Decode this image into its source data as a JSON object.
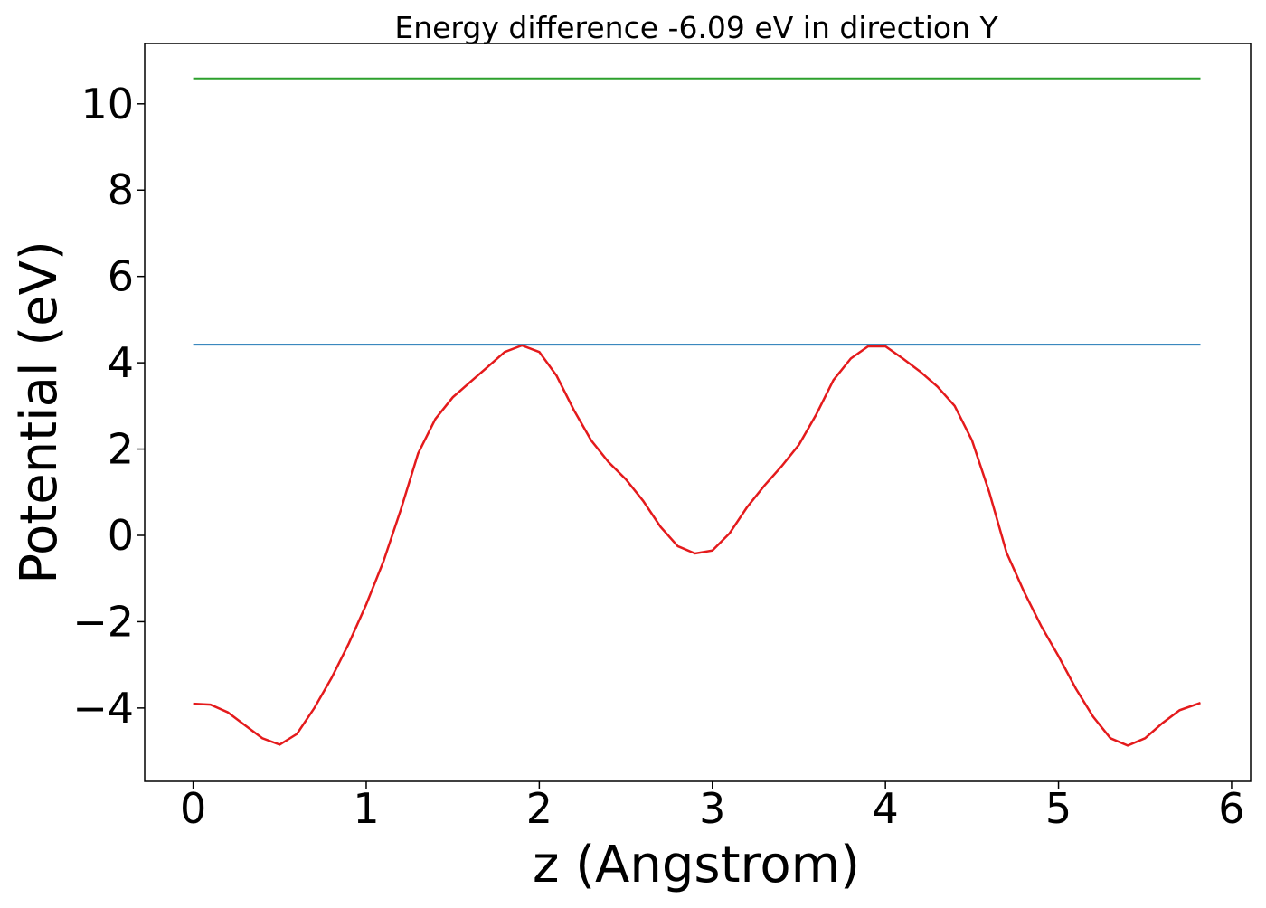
{
  "chart_data": {
    "type": "line",
    "title": "Energy difference -6.09 eV in direction Y",
    "xlabel": "z (Angstrom)",
    "ylabel": "Potential (eV)",
    "xlim": [
      -0.28,
      6.11
    ],
    "ylim": [
      -5.7,
      11.4
    ],
    "xticks": [
      0,
      1,
      2,
      3,
      4,
      5,
      6
    ],
    "yticks": [
      {
        "value": -4,
        "label": "−4"
      },
      {
        "value": -2,
        "label": "−2"
      },
      0,
      2,
      4,
      6,
      8,
      10
    ],
    "series": [
      {
        "color": "#2ca02c",
        "x": [
          0,
          5.82
        ],
        "values": [
          10.59,
          10.59
        ]
      },
      {
        "color": "#1f77b4",
        "x": [
          0,
          5.82
        ],
        "values": [
          4.42,
          4.42
        ]
      },
      {
        "color": "#e41a1c",
        "x": [
          0,
          0.1,
          0.2,
          0.3,
          0.4,
          0.5,
          0.6,
          0.7,
          0.8,
          0.9,
          1.0,
          1.1,
          1.2,
          1.3,
          1.4,
          1.5,
          1.6,
          1.7,
          1.8,
          1.9,
          2.0,
          2.1,
          2.2,
          2.3,
          2.4,
          2.5,
          2.6,
          2.7,
          2.8,
          2.9,
          3.0,
          3.1,
          3.2,
          3.3,
          3.4,
          3.5,
          3.6,
          3.7,
          3.8,
          3.9,
          4.0,
          4.1,
          4.2,
          4.3,
          4.4,
          4.5,
          4.6,
          4.7,
          4.8,
          4.9,
          5.0,
          5.1,
          5.2,
          5.3,
          5.4,
          5.5,
          5.6,
          5.7,
          5.82
        ],
        "values": [
          -3.9,
          -3.92,
          -4.1,
          -4.4,
          -4.7,
          -4.85,
          -4.6,
          -4.0,
          -3.3,
          -2.5,
          -1.6,
          -0.6,
          0.6,
          1.9,
          2.7,
          3.2,
          3.55,
          3.9,
          4.25,
          4.4,
          4.25,
          3.7,
          2.9,
          2.2,
          1.7,
          1.3,
          0.8,
          0.2,
          -0.25,
          -0.42,
          -0.35,
          0.05,
          0.65,
          1.15,
          1.6,
          2.1,
          2.8,
          3.6,
          4.1,
          4.38,
          4.38,
          4.1,
          3.8,
          3.45,
          3.0,
          2.2,
          1.0,
          -0.4,
          -1.3,
          -2.1,
          -2.8,
          -3.55,
          -4.2,
          -4.7,
          -4.87,
          -4.7,
          -4.35,
          -4.05,
          -3.88
        ]
      }
    ]
  }
}
